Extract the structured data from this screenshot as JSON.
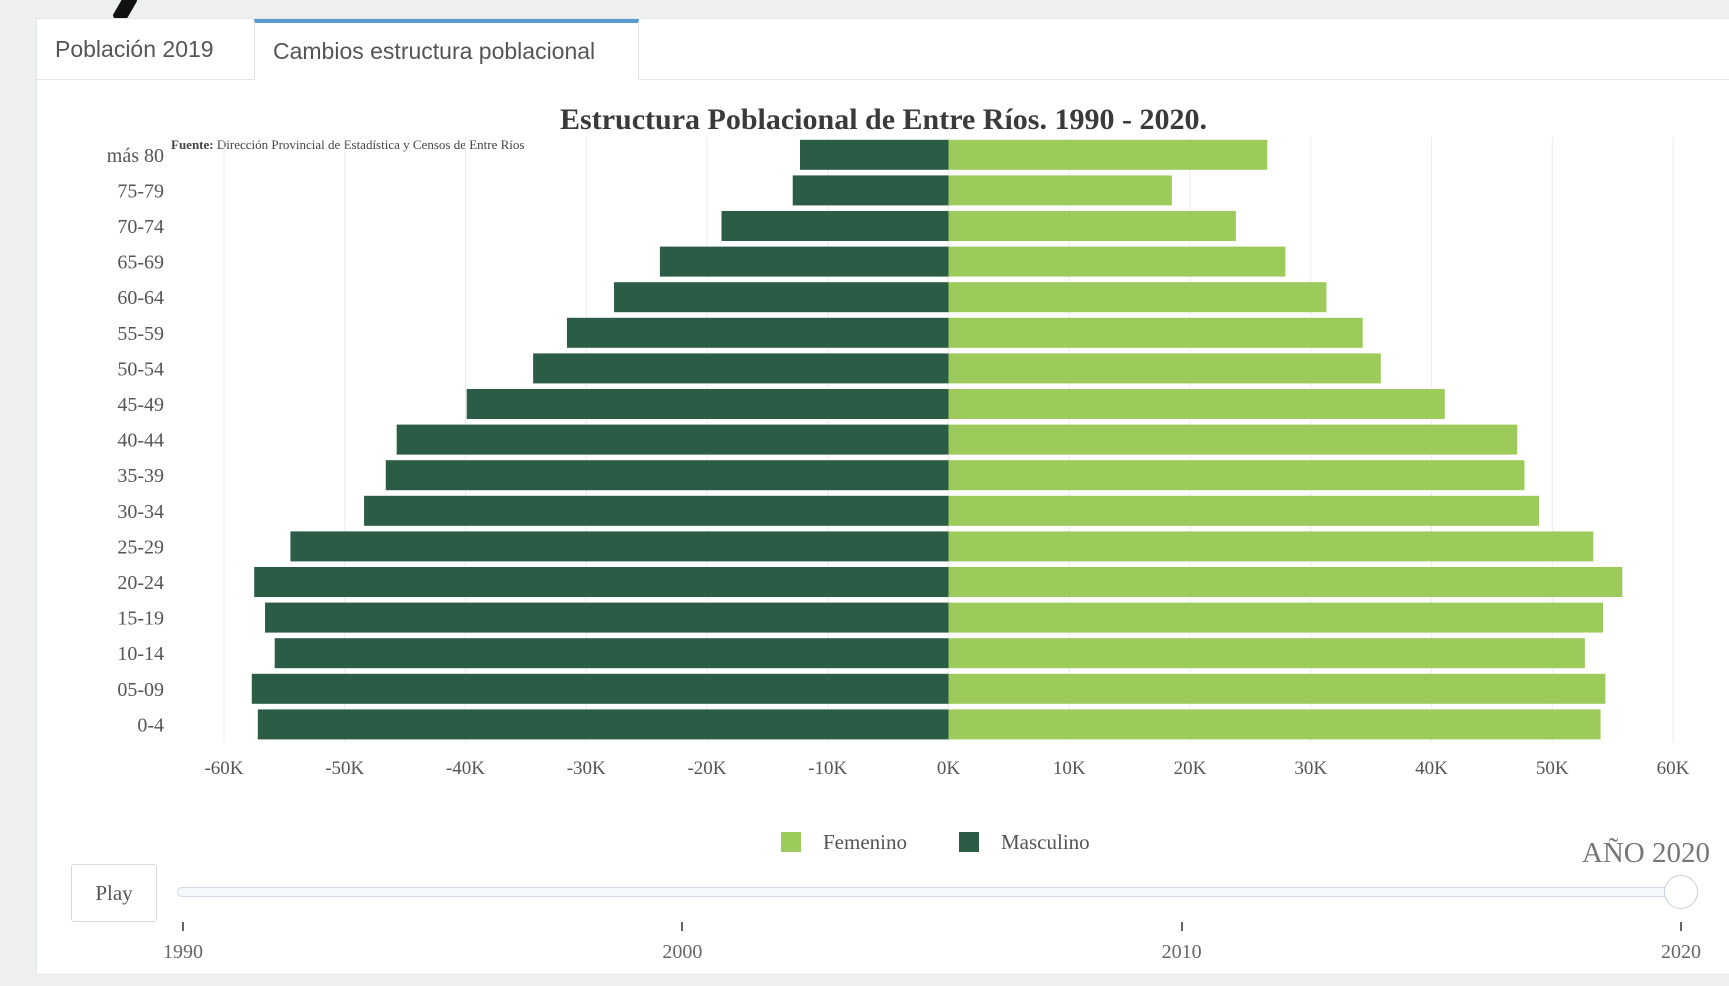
{
  "tabs": [
    {
      "label": "Población 2019",
      "active": false
    },
    {
      "label": "Cambios estructura poblacional",
      "active": true
    }
  ],
  "chart_data": {
    "type": "bar",
    "orientation": "horizontal",
    "subtype": "population-pyramid",
    "title": "Estructura Poblacional de Entre Ríos. 1990 - 2020.",
    "source_label": "Fuente:",
    "source_text": "Dirección Provincial de Estadística y Censos de Entre Ríos",
    "categories": [
      "0-4",
      "05-09",
      "10-14",
      "15-19",
      "20-24",
      "25-29",
      "30-34",
      "35-39",
      "40-44",
      "45-49",
      "50-54",
      "55-59",
      "60-64",
      "65-69",
      "70-74",
      "75-79",
      "más 80"
    ],
    "series": [
      {
        "name": "Femenino",
        "color": "#9ccb5b",
        "values": [
          54000,
          54400,
          52700,
          54200,
          55800,
          53400,
          48900,
          47700,
          47100,
          41100,
          35800,
          34300,
          31300,
          27900,
          23800,
          18500,
          26400
        ]
      },
      {
        "name": "Masculino",
        "color": "#2b5c45",
        "values": [
          -57200,
          -57700,
          -55800,
          -56600,
          -57500,
          -54500,
          -48400,
          -46600,
          -45700,
          -39900,
          -34400,
          -31600,
          -27700,
          -23900,
          -18800,
          -12900,
          -12300
        ]
      }
    ],
    "xlim": [
      -60000,
      60000
    ],
    "x_ticks": [
      -60000,
      -50000,
      -40000,
      -30000,
      -20000,
      -10000,
      0,
      10000,
      20000,
      30000,
      40000,
      50000,
      60000
    ],
    "x_tick_labels": [
      "-60K",
      "-50K",
      "-40K",
      "-30K",
      "-20K",
      "-10K",
      "0K",
      "10K",
      "20K",
      "30K",
      "40K",
      "50K",
      "60K"
    ],
    "grid": "vertical",
    "legend_position": "bottom-center"
  },
  "slider": {
    "year_label": "AÑO 2020",
    "play_label": "Play",
    "min": 1990,
    "max": 2020,
    "value": 2020,
    "ticks": [
      {
        "value": 1990,
        "label": "1990"
      },
      {
        "value": 2000,
        "label": "2000"
      },
      {
        "value": 2010,
        "label": "2010"
      },
      {
        "value": 2020,
        "label": "2020"
      }
    ]
  }
}
